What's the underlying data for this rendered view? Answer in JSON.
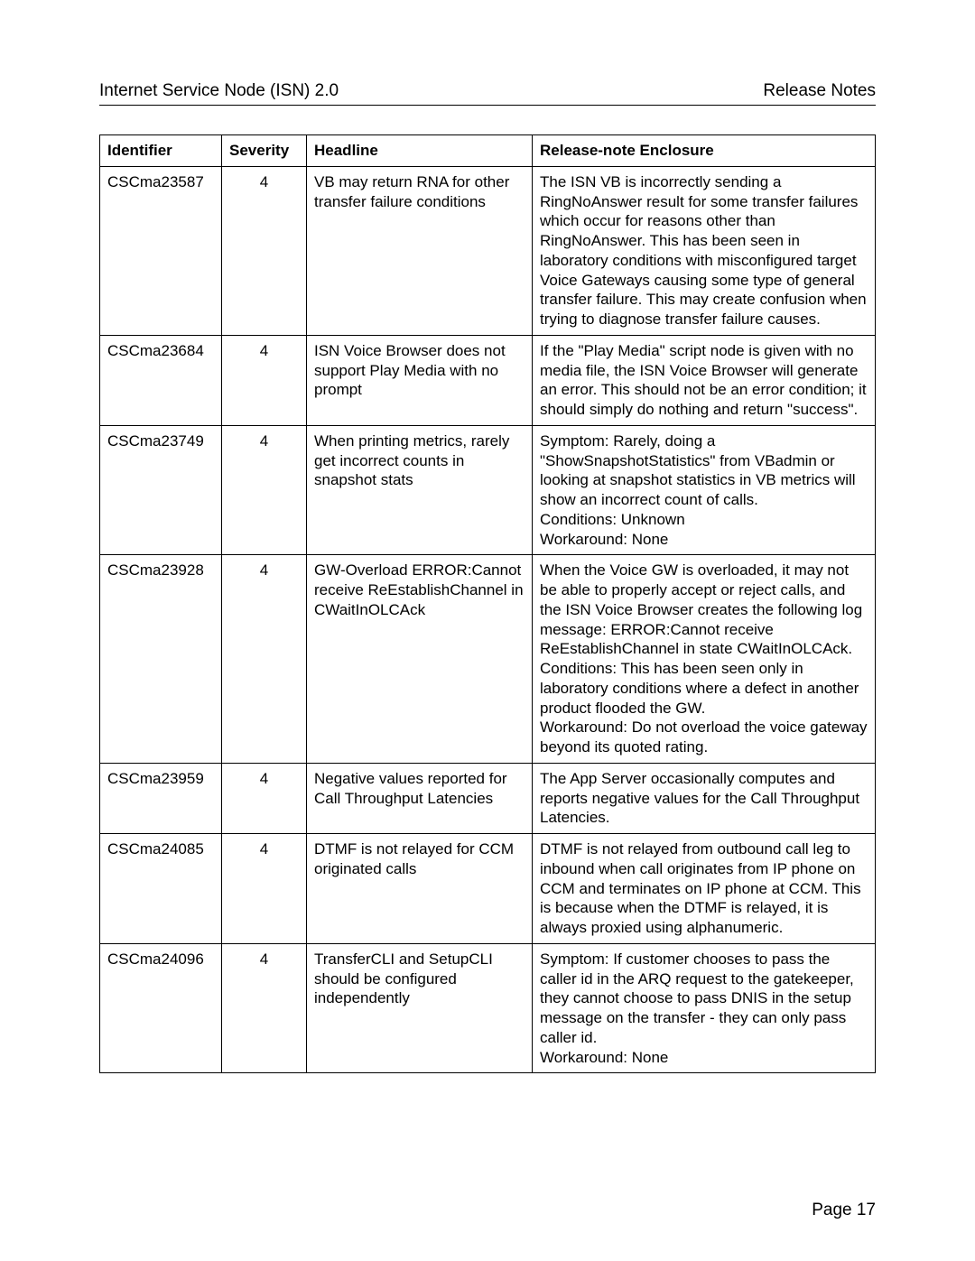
{
  "header": {
    "left": "Internet Service Node (ISN) 2.0",
    "right": "Release Notes"
  },
  "table": {
    "columns": [
      "Identifier",
      "Severity",
      "Headline",
      "Release-note Enclosure"
    ],
    "rows": [
      {
        "identifier": "CSCma23587",
        "severity": "4",
        "headline": "VB may return RNA for other transfer failure conditions",
        "enclosure": "The ISN VB is incorrectly sending a RingNoAnswer result for some transfer failures which occur for reasons other than RingNoAnswer. This has been seen in laboratory conditions with misconfigured target Voice Gateways causing some type of general transfer failure. This may create confusion when trying to diagnose transfer failure causes."
      },
      {
        "identifier": "CSCma23684",
        "severity": "4",
        "headline": "ISN Voice Browser does not support Play Media with no prompt",
        "enclosure": "If the \"Play Media\" script node is given with no media file, the ISN Voice Browser will generate an error. This should not be an error condition; it should simply do nothing and return \"success\"."
      },
      {
        "identifier": "CSCma23749",
        "severity": "4",
        "headline": "When printing metrics, rarely get incorrect counts in snapshot stats",
        "enclosure": "Symptom: Rarely, doing a \"ShowSnapshotStatistics\" from VBadmin or looking at snapshot statistics in VB metrics will show an incorrect count of calls.\nConditions: Unknown\nWorkaround: None"
      },
      {
        "identifier": "CSCma23928",
        "severity": "4",
        "headline": "GW-Overload ERROR:Cannot receive ReEstablishChannel in CWaitInOLCAck",
        "enclosure": "When the Voice GW is overloaded, it may not be able to properly accept or reject calls, and the ISN Voice Browser creates the following log message: ERROR:Cannot receive ReEstablishChannel in state CWaitInOLCAck.\nConditions: This has been seen only in laboratory conditions where a defect in another product flooded the GW.\nWorkaround: Do not overload the voice gateway beyond its quoted rating."
      },
      {
        "identifier": "CSCma23959",
        "severity": "4",
        "headline": "Negative values reported for Call Throughput Latencies",
        "enclosure": "The App Server occasionally computes and reports negative values for the Call Throughput Latencies."
      },
      {
        "identifier": "CSCma24085",
        "severity": "4",
        "headline": "DTMF is not relayed for CCM originated calls",
        "enclosure": "DTMF is not relayed from outbound call leg to inbound when call originates from IP phone on CCM and terminates on IP phone at CCM. This is because when the DTMF is relayed, it is always proxied using alphanumeric."
      },
      {
        "identifier": "CSCma24096",
        "severity": "4",
        "headline": "TransferCLI and SetupCLI should be configured independently",
        "enclosure": "Symptom: If customer chooses to pass the caller id in the ARQ request to the gatekeeper, they cannot choose to pass DNIS in the setup message on the transfer - they can only pass caller id.\nWorkaround: None"
      }
    ]
  },
  "footer": {
    "page_label": "Page 17"
  }
}
